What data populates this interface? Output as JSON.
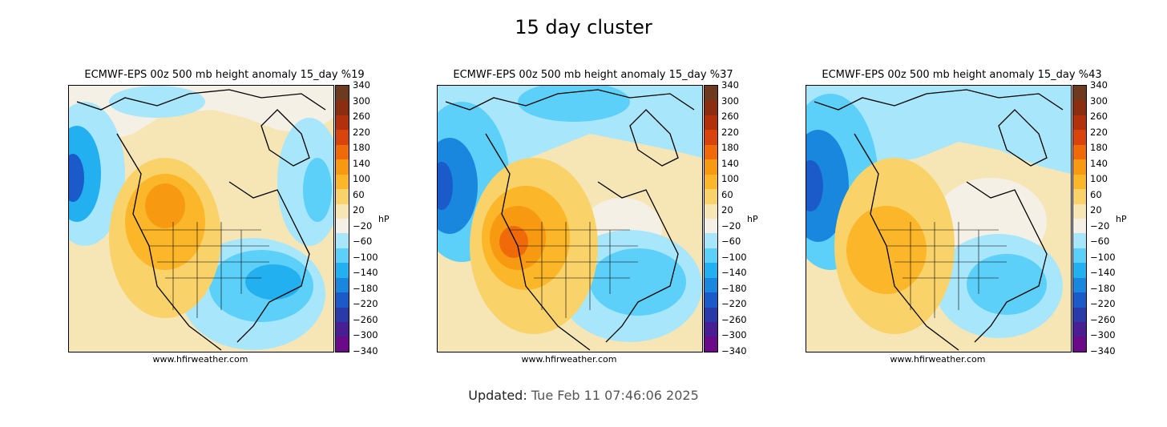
{
  "page": {
    "title": "15 day cluster"
  },
  "panels": [
    {
      "title": "ECMWF-EPS 00z 500 mb height anomaly 15_day %19",
      "credit": "www.hfirweather.com"
    },
    {
      "title": "ECMWF-EPS 00z 500 mb height anomaly 15_day %37",
      "credit": "www.hfirweather.com"
    },
    {
      "title": "ECMWF-EPS 00z 500 mb height anomaly 15_day %43",
      "credit": "www.hfirweather.com"
    }
  ],
  "colorbar": {
    "unit": "hP",
    "ticks": [
      "340",
      "300",
      "260",
      "220",
      "180",
      "140",
      "100",
      "60",
      "20",
      "−20",
      "−60",
      "−100",
      "−140",
      "−180",
      "−220",
      "−260",
      "−300",
      "−340"
    ],
    "colors": [
      "#6e3a1f",
      "#8b2e10",
      "#b3300d",
      "#d9440c",
      "#f06a0a",
      "#f79a12",
      "#fbb62a",
      "#f9d36a",
      "#f6e6b6",
      "#f5f0e6",
      "#a8e6fb",
      "#5cd0f8",
      "#23b0f0",
      "#1a87df",
      "#1a5bc9",
      "#2a3aa8",
      "#4a1e93",
      "#6a0a88"
    ]
  },
  "footer": {
    "updated_label": "Updated:",
    "updated_value": "Tue Feb 11 07:46:06 2025"
  }
}
